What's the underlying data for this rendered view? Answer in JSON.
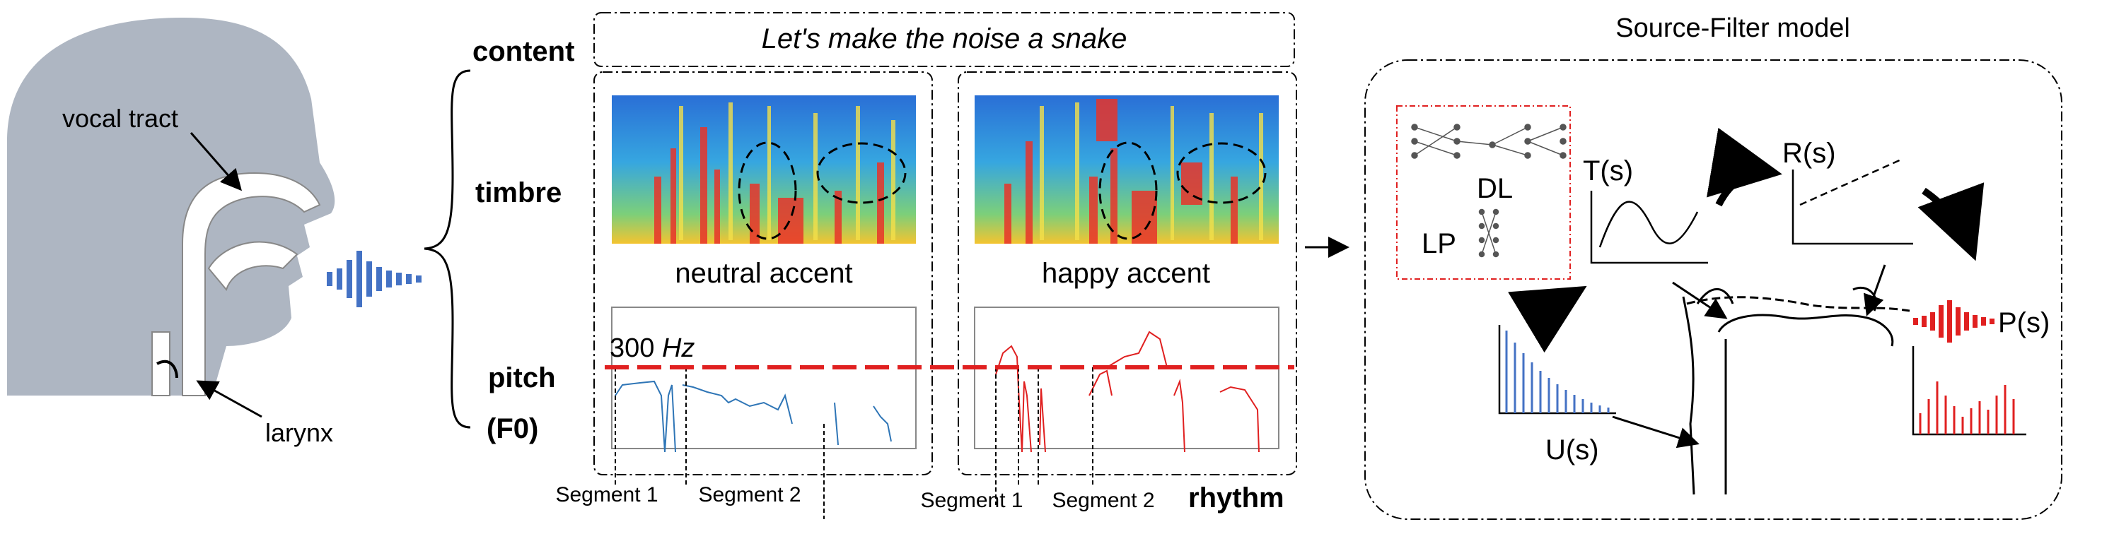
{
  "head": {
    "vocal_tract": "vocal tract",
    "larynx": "larynx"
  },
  "factors": {
    "content": "content",
    "timbre": "timbre",
    "pitch": "pitch",
    "f0": "(F0)",
    "rhythm": "rhythm"
  },
  "sentence": "Let's make the noise a snake",
  "panels": [
    {
      "accent": "neutral accent",
      "segments": [
        "Segment 1",
        "Segment 2"
      ]
    },
    {
      "accent": "happy accent",
      "segments": [
        "Segment 1",
        "Segment 2"
      ]
    }
  ],
  "threshold": {
    "value": "300",
    "unit": "Hz"
  },
  "source_filter": {
    "title": "Source-Filter model",
    "dl": "DL",
    "lp": "LP",
    "transfer": "T(s)",
    "radiation": "R(s)",
    "source": "U(s)",
    "output": "P(s)"
  },
  "colors": {
    "head": "#aeb6c2",
    "neutral_pitch": "#2e75b6",
    "happy_pitch": "#e02020",
    "threshold": "#e02020",
    "source_bars": "#4472c4",
    "output_bars": "#e02020",
    "dl_box": "#e02020"
  },
  "icons": [
    "sound-wave-icon",
    "neural-network-icon",
    "curved-arrow-icon"
  ]
}
